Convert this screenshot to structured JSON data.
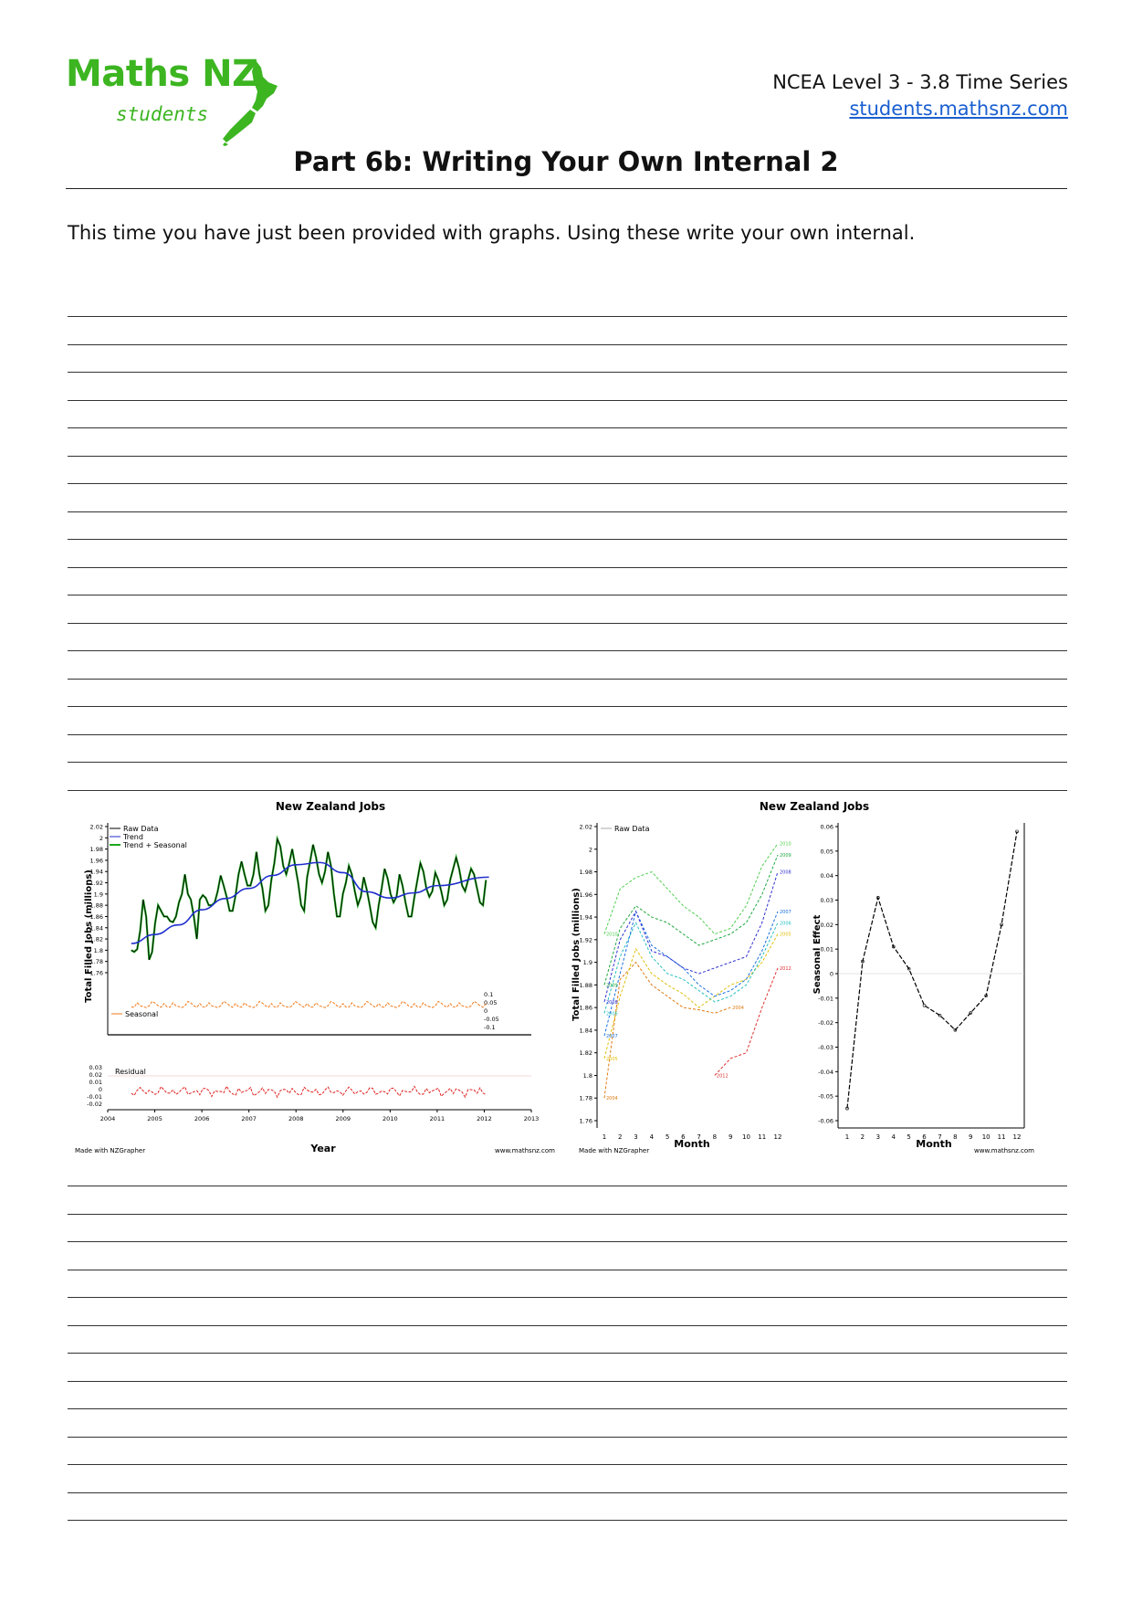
{
  "header": {
    "logo_main": "Maths NZ",
    "logo_sub": "students",
    "course": "NCEA Level 3 - 3.8 Time Series",
    "website": "students.mathsnz.com"
  },
  "page": {
    "title": "Part 6b: Writing Your Own Internal 2",
    "intro": "This time you have just been provided with graphs. Using these write your own internal."
  },
  "chart_data": [
    {
      "type": "line",
      "title": "New Zealand Jobs",
      "xlabel": "Year",
      "ylabel": "Total Filled Jobs (millions)",
      "credit_left": "Made with NZGrapher",
      "credit_right": "www.mathsnz.com",
      "xlim": [
        2004,
        2013
      ],
      "ylim": [
        1.76,
        2.02
      ],
      "x_ticks": [
        "2004",
        "2005",
        "2006",
        "2007",
        "2008",
        "2009",
        "2010",
        "2011",
        "2012",
        "2013"
      ],
      "y_ticks": [
        "2.02",
        "2",
        "1.98",
        "1.96",
        "1.94",
        "1.92",
        "1.9",
        "1.88",
        "1.86",
        "1.84",
        "1.82",
        "1.8",
        "1.78",
        "1.76"
      ],
      "legend": [
        "Raw Data",
        "Trend",
        "Trend + Seasonal"
      ],
      "series_colors": {
        "raw": "#000000",
        "trend": "#1f2fcc",
        "trend_seasonal": "#1fa81f",
        "seasonal": "#f07a1a",
        "residual": "#e02020"
      },
      "seasonal_label": "Seasonal",
      "seasonal_ticks": [
        "0.1",
        "0.05",
        "0",
        "-0.05",
        "-0.1"
      ],
      "residual_label": "Residual",
      "residual_ticks": [
        "0.03",
        "0.02",
        "0.01",
        "0",
        "-0.01",
        "-0.02"
      ],
      "raw_values": [
        1.8,
        1.797,
        1.802,
        1.835,
        1.89,
        1.86,
        1.783,
        1.797,
        1.848,
        1.88,
        1.87,
        1.86,
        1.86,
        1.852,
        1.85,
        1.86,
        1.885,
        1.9,
        1.935,
        1.9,
        1.89,
        1.86,
        1.82,
        1.89,
        1.898,
        1.893,
        1.88,
        1.88,
        1.885,
        1.905,
        1.933,
        1.915,
        1.895,
        1.87,
        1.87,
        1.898,
        1.935,
        1.958,
        1.935,
        1.915,
        1.915,
        1.935,
        1.975,
        1.935,
        1.91,
        1.87,
        1.88,
        1.925,
        1.955,
        1.998,
        1.985,
        1.95,
        1.935,
        1.955,
        1.98,
        1.95,
        1.92,
        1.88,
        1.87,
        1.93,
        1.958,
        1.988,
        1.965,
        1.935,
        1.92,
        1.94,
        1.975,
        1.95,
        1.9,
        1.86,
        1.86,
        1.9,
        1.92,
        1.95,
        1.935,
        1.905,
        1.88,
        1.895,
        1.93,
        1.908,
        1.88,
        1.85,
        1.84,
        1.88,
        1.91,
        1.945,
        1.928,
        1.9,
        1.885,
        1.895,
        1.935,
        1.915,
        1.885,
        1.86,
        1.86,
        1.895,
        1.925,
        1.955,
        1.94,
        1.91,
        1.895,
        1.905,
        1.938,
        1.925,
        1.905,
        1.88,
        1.89,
        1.925,
        1.945,
        1.965,
        1.945,
        1.915,
        1.905,
        1.925,
        1.945,
        1.935,
        1.91,
        1.885,
        1.88,
        1.925
      ],
      "trend_start_year": 2004.5,
      "trend_values": [
        1.812,
        1.845,
        1.872,
        1.892,
        1.91,
        1.933,
        1.952,
        1.956,
        1.938,
        1.904,
        1.893,
        1.902,
        1.915,
        1.93
      ],
      "trend_years": [
        2004.5,
        2005,
        2005.5,
        2006,
        2006.5,
        2007,
        2007.5,
        2008,
        2008.5,
        2009,
        2009.5,
        2010,
        2010.5,
        2011,
        2012.1
      ],
      "trend_values_full": [
        1.812,
        1.828,
        1.845,
        1.872,
        1.892,
        1.91,
        1.933,
        1.952,
        1.956,
        1.938,
        1.904,
        1.893,
        1.902,
        1.915,
        1.93
      ]
    },
    {
      "type": "line",
      "title": "New Zealand Jobs",
      "xlabel": "Month",
      "ylabel": "Total Filled Jobs (millions)",
      "credit_left": "Made with NZGrapher",
      "x_ticks": [
        "1",
        "2",
        "3",
        "4",
        "5",
        "6",
        "7",
        "8",
        "9",
        "10",
        "11",
        "12"
      ],
      "y_ticks": [
        "2.02",
        "2",
        "1.98",
        "1.96",
        "1.94",
        "1.92",
        "1.9",
        "1.88",
        "1.86",
        "1.84",
        "1.82",
        "1.8",
        "1.78",
        "1.76"
      ],
      "ylim": [
        1.76,
        2.02
      ],
      "legend": [
        "Raw Data"
      ],
      "series": [
        {
          "name": "2004",
          "color": "#e07a10",
          "values": [
            1.78,
            1.885,
            1.9,
            1.88,
            1.87,
            1.86,
            1.858,
            1.855,
            1.86,
            null,
            null,
            null
          ]
        },
        {
          "name": "2005",
          "color": "#e0c010",
          "values": [
            1.815,
            1.87,
            1.912,
            1.89,
            1.88,
            1.872,
            1.86,
            1.87,
            1.88,
            1.885,
            1.9,
            1.925
          ]
        },
        {
          "name": "2006",
          "color": "#2bbfbf",
          "values": [
            1.855,
            1.905,
            1.935,
            1.905,
            1.89,
            1.885,
            1.875,
            1.865,
            1.87,
            1.88,
            1.905,
            1.935
          ]
        },
        {
          "name": "2007",
          "color": "#1a70e0",
          "values": [
            1.835,
            1.89,
            1.945,
            1.915,
            1.905,
            1.895,
            1.88,
            1.87,
            1.875,
            1.885,
            1.91,
            1.945
          ]
        },
        {
          "name": "2008",
          "color": "#3030d0",
          "values": [
            1.865,
            1.92,
            1.945,
            1.91,
            1.905,
            1.895,
            1.89,
            1.895,
            1.9,
            1.905,
            1.935,
            1.98
          ]
        },
        {
          "name": "2009",
          "color": "#20a840",
          "values": [
            1.88,
            1.93,
            1.95,
            1.94,
            1.935,
            1.925,
            1.915,
            1.92,
            1.925,
            1.935,
            1.96,
            1.995
          ]
        },
        {
          "name": "2010",
          "color": "#50d050",
          "values": [
            1.925,
            1.965,
            1.975,
            1.98,
            1.965,
            1.95,
            1.94,
            1.925,
            1.93,
            1.95,
            1.985,
            2.005
          ]
        },
        {
          "name": "2012",
          "color": "#e03030",
          "values": [
            null,
            null,
            null,
            null,
            null,
            null,
            null,
            1.8,
            1.815,
            1.82,
            1.86,
            1.895
          ]
        }
      ],
      "series_labels_right": [
        "2007",
        "2011",
        "2011",
        "2009",
        "2006",
        "2005",
        "2004"
      ],
      "series_labels_left": [
        "2009",
        "2011",
        "2012",
        "2006",
        "2009",
        "2005"
      ]
    },
    {
      "type": "line",
      "xlabel": "Month",
      "ylabel": "Seasonal Effect",
      "credit_right": "www.mathsnz.com",
      "x_ticks": [
        "1",
        "2",
        "3",
        "4",
        "5",
        "6",
        "7",
        "8",
        "9",
        "10",
        "11",
        "12"
      ],
      "y_ticks": [
        "0.06",
        "0.05",
        "0.04",
        "0.03",
        "0.02",
        "0.01",
        "0",
        "-0.01",
        "-0.02",
        "-0.03",
        "-0.04",
        "-0.05",
        "-0.06"
      ],
      "ylim": [
        -0.06,
        0.06
      ],
      "values": [
        -0.055,
        0.005,
        0.031,
        0.011,
        0.002,
        -0.013,
        -0.017,
        -0.023,
        -0.016,
        -0.009,
        0.02,
        0.058
      ],
      "color": "#000000"
    }
  ]
}
